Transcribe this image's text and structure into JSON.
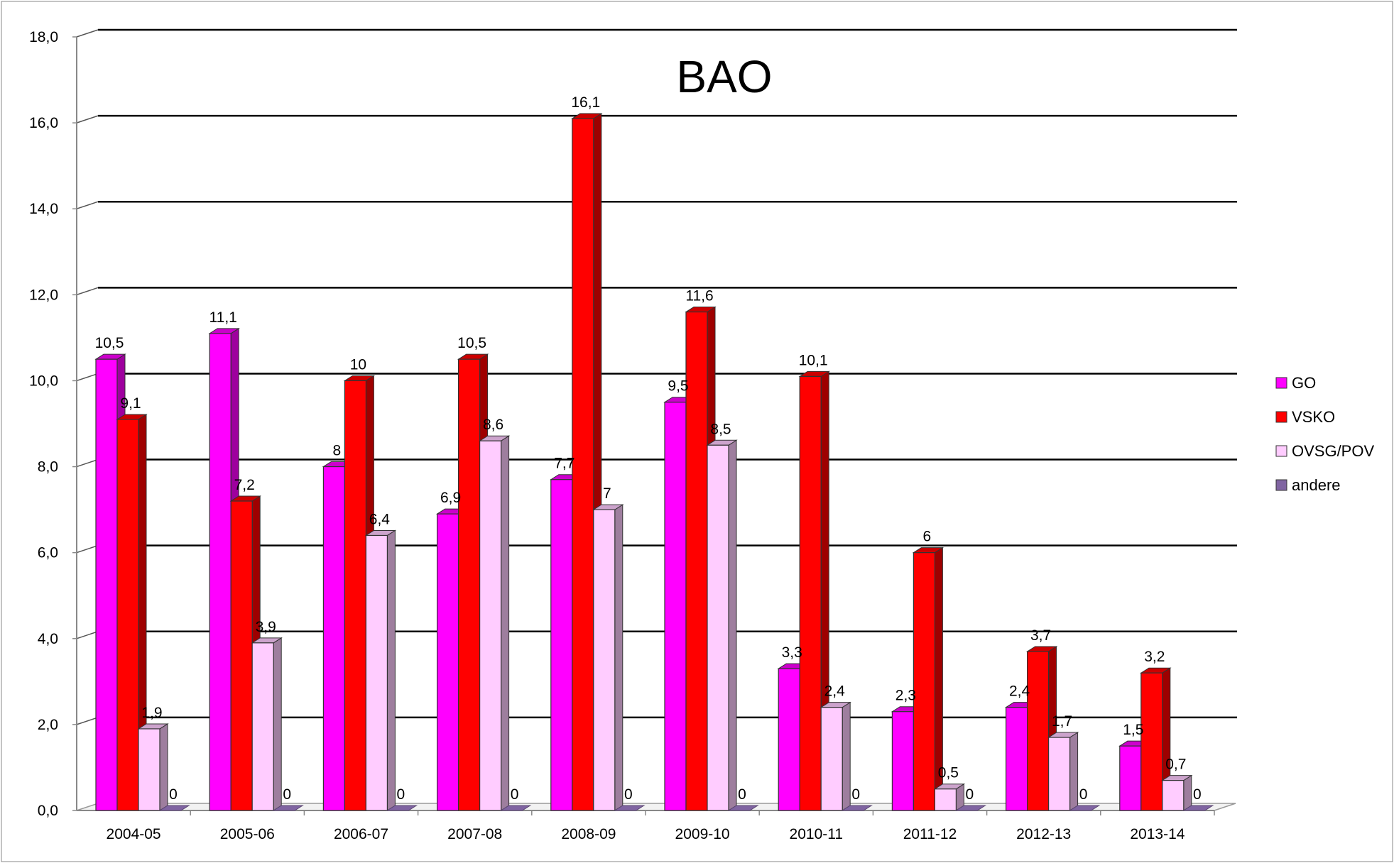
{
  "chart_data": {
    "type": "bar",
    "title": "BAO",
    "xlabel": "",
    "ylabel": "",
    "ylim": [
      0,
      18
    ],
    "yticks": [
      "0,0",
      "2,0",
      "4,0",
      "6,0",
      "8,0",
      "10,0",
      "12,0",
      "14,0",
      "16,0",
      "18,0"
    ],
    "grid": true,
    "legend_position": "right",
    "categories": [
      "2004-05",
      "2005-06",
      "2006-07",
      "2007-08",
      "2008-09",
      "2009-10",
      "2010-11",
      "2011-12",
      "2012-13",
      "2013-14"
    ],
    "series": [
      {
        "name": "GO",
        "color": "#ff00ff",
        "values": [
          10.5,
          11.1,
          8,
          6.9,
          7.7,
          9.5,
          3.3,
          2.3,
          2.4,
          1.5
        ],
        "labels": [
          "10,5",
          "11,1",
          "8",
          "6,9",
          "7,7",
          "9,5",
          "3,3",
          "2,3",
          "2,4",
          "1,5"
        ]
      },
      {
        "name": "VSKO",
        "color": "#ff0000",
        "values": [
          9.1,
          7.2,
          10,
          10.5,
          16.1,
          11.6,
          10.1,
          6,
          3.7,
          3.2
        ],
        "labels": [
          "9,1",
          "7,2",
          "10",
          "10,5",
          "16,1",
          "11,6",
          "10,1",
          "6",
          "3,7",
          "3,2"
        ]
      },
      {
        "name": "OVSG/POV",
        "color": "#ffccff",
        "values": [
          1.9,
          3.9,
          6.4,
          8.6,
          7,
          8.5,
          2.4,
          0.5,
          1.7,
          0.7
        ],
        "labels": [
          "1,9",
          "3,9",
          "6,4",
          "8,6",
          "7",
          "8,5",
          "2,4",
          "0,5",
          "1,7",
          "0,7"
        ]
      },
      {
        "name": "andere",
        "color": "#8064a2",
        "values": [
          0,
          0,
          0,
          0,
          0,
          0,
          0,
          0,
          0,
          0
        ],
        "labels": [
          "0",
          "0",
          "0",
          "0",
          "0",
          "0",
          "0",
          "0",
          "0",
          "0"
        ]
      }
    ]
  }
}
